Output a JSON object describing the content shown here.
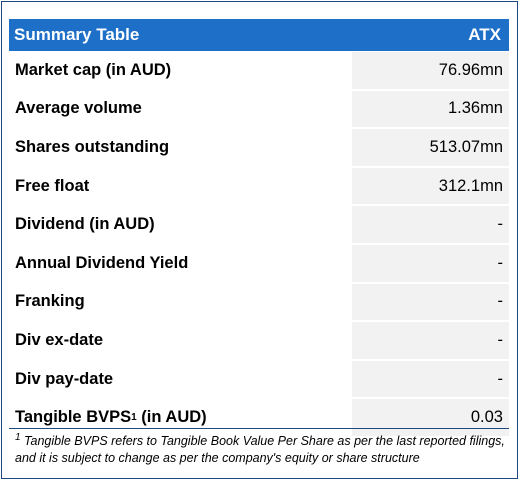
{
  "header": {
    "title": "Summary Table",
    "ticker": "ATX"
  },
  "rows": [
    {
      "label": "Market cap (in AUD)",
      "value": "76.96mn"
    },
    {
      "label": "Average volume",
      "value": "1.36mn"
    },
    {
      "label": "Shares outstanding",
      "value": "513.07mn"
    },
    {
      "label": "Free float",
      "value": "312.1mn"
    },
    {
      "label": "Dividend (in AUD)",
      "value": "-"
    },
    {
      "label": "Annual Dividend Yield",
      "value": "-"
    },
    {
      "label": "Franking",
      "value": "-"
    },
    {
      "label": "Div ex-date",
      "value": "-"
    },
    {
      "label": "Div pay-date",
      "value": "-"
    },
    {
      "label": "Tangible BVPS",
      "label_sup": "1",
      "label_suffix": " (in AUD)",
      "value": "0.03"
    }
  ],
  "footnote": {
    "marker": "1",
    "text": " Tangible BVPS refers to Tangible Book Value Per Share as per the last reported filings, and it is subject to change as per the company's equity or share structure"
  },
  "colors": {
    "header_bg": "#1e6fc8",
    "value_bg": "#f2f2f2",
    "border": "#1f497d"
  }
}
